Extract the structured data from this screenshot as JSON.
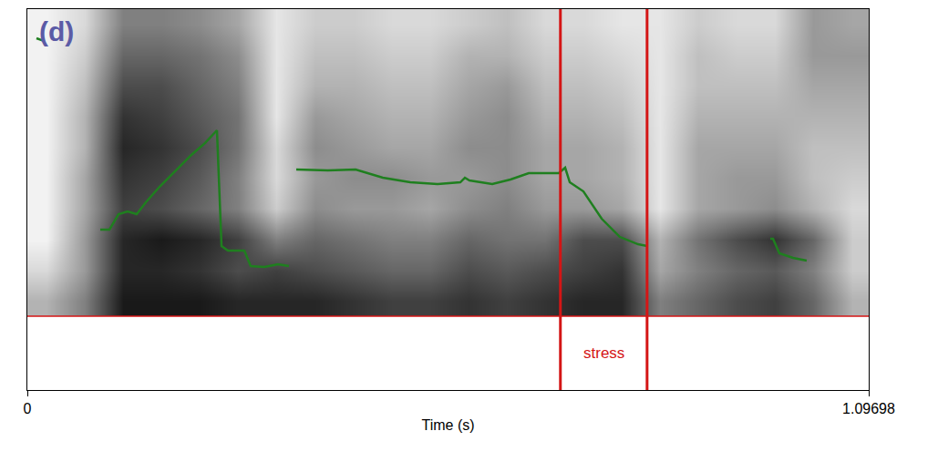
{
  "chart_data": {
    "type": "spectrogram",
    "panel_label": "(d)",
    "x_label": "Time (s)",
    "xlim": [
      0,
      1.09698
    ],
    "xticks": [
      0,
      1.09698
    ],
    "ylim": [
      -1200,
      5000
    ],
    "tick_labels": "x",
    "grid": false,
    "tier_boundary": 0,
    "heatmap": {
      "x": [
        0.025,
        0.075,
        0.125,
        0.175,
        0.225,
        0.275,
        0.325,
        0.375,
        0.425,
        0.475,
        0.525,
        0.575,
        0.625,
        0.675,
        0.725,
        0.775,
        0.825,
        0.875,
        0.925,
        0.975,
        1.025,
        1.075
      ],
      "y": [
        250,
        750,
        1250,
        1750,
        2250,
        2750,
        3250,
        3750,
        4250,
        4750
      ],
      "cell_range": [
        0,
        1
      ],
      "cells": [
        [
          0.3,
          0.5,
          0.9,
          0.9,
          0.9,
          0.85,
          0.85,
          0.85,
          0.8,
          0.75,
          0.75,
          0.8,
          0.75,
          0.8,
          0.85,
          0.85,
          0.5,
          0.6,
          0.7,
          0.75,
          0.6,
          0.3
        ],
        [
          0.15,
          0.4,
          0.85,
          0.85,
          0.8,
          0.7,
          0.75,
          0.7,
          0.65,
          0.6,
          0.6,
          0.7,
          0.65,
          0.7,
          0.75,
          0.8,
          0.35,
          0.5,
          0.6,
          0.65,
          0.5,
          0.2
        ],
        [
          0.05,
          0.4,
          0.85,
          0.9,
          0.85,
          0.75,
          0.5,
          0.6,
          0.55,
          0.5,
          0.5,
          0.6,
          0.55,
          0.55,
          0.7,
          0.7,
          0.3,
          0.55,
          0.7,
          0.8,
          0.6,
          0.2
        ],
        [
          0.05,
          0.35,
          0.75,
          0.7,
          0.6,
          0.5,
          0.2,
          0.45,
          0.4,
          0.4,
          0.35,
          0.45,
          0.5,
          0.4,
          0.4,
          0.35,
          0.1,
          0.35,
          0.4,
          0.45,
          0.3,
          0.15
        ],
        [
          0.05,
          0.35,
          0.8,
          0.75,
          0.65,
          0.5,
          0.15,
          0.4,
          0.45,
          0.45,
          0.4,
          0.4,
          0.45,
          0.35,
          0.35,
          0.3,
          0.1,
          0.35,
          0.4,
          0.4,
          0.25,
          0.2
        ],
        [
          0.05,
          0.3,
          0.85,
          0.8,
          0.7,
          0.55,
          0.15,
          0.45,
          0.4,
          0.35,
          0.35,
          0.45,
          0.45,
          0.35,
          0.35,
          0.3,
          0.1,
          0.35,
          0.35,
          0.35,
          0.25,
          0.25
        ],
        [
          0.05,
          0.3,
          0.8,
          0.75,
          0.65,
          0.55,
          0.1,
          0.4,
          0.35,
          0.3,
          0.3,
          0.4,
          0.45,
          0.3,
          0.3,
          0.25,
          0.1,
          0.3,
          0.3,
          0.3,
          0.3,
          0.3
        ],
        [
          0.05,
          0.25,
          0.7,
          0.7,
          0.6,
          0.5,
          0.1,
          0.3,
          0.3,
          0.25,
          0.25,
          0.35,
          0.4,
          0.25,
          0.25,
          0.2,
          0.1,
          0.25,
          0.25,
          0.25,
          0.35,
          0.35
        ],
        [
          0.05,
          0.2,
          0.6,
          0.6,
          0.55,
          0.45,
          0.1,
          0.25,
          0.25,
          0.2,
          0.2,
          0.3,
          0.3,
          0.2,
          0.2,
          0.15,
          0.1,
          0.25,
          0.2,
          0.2,
          0.4,
          0.4
        ],
        [
          0.05,
          0.15,
          0.5,
          0.5,
          0.45,
          0.35,
          0.1,
          0.2,
          0.2,
          0.15,
          0.15,
          0.2,
          0.25,
          0.15,
          0.15,
          0.1,
          0.1,
          0.2,
          0.15,
          0.15,
          0.4,
          0.35
        ]
      ]
    },
    "pitch": {
      "color": "#1f7f1f",
      "x": [
        0.0119,
        0.0214,
        0.05,
        0.0951,
        0.107,
        0.1189,
        0.1307,
        0.1426,
        0.1545,
        0.1723,
        0.1902,
        0.2139,
        0.2318,
        0.2472,
        0.2532,
        0.2615,
        0.2829,
        0.2912,
        0.309,
        0.3268,
        0.3411,
        0.345,
        0.3506,
        0.3922,
        0.4279,
        0.4635,
        0.4992,
        0.5348,
        0.5645,
        0.5705,
        0.5764,
        0.6061,
        0.6299,
        0.6537,
        0.6774,
        0.6929,
        0.7012,
        0.7072,
        0.725,
        0.7488,
        0.7725,
        0.7963,
        0.8082,
        0.9,
        0.9686,
        0.9722,
        0.9805,
        0.9983,
        1.0161
      ],
      "values": [
        4526,
        4482,
        null,
        1410,
        1410,
        1662,
        1707,
        1662,
        1855,
        2107,
        2330,
        2627,
        2820,
        3027,
        1143,
        1068,
        1068,
        816,
        801,
        846,
        816,
        null,
        2389,
        2374,
        2389,
        2256,
        2181,
        2152,
        2181,
        2256,
        2211,
        2152,
        2226,
        2330,
        2330,
        2330,
        2419,
        2181,
        2033,
        1588,
        1291,
        1172,
        1143,
        null,
        1261,
        1261,
        1024,
        950,
        905
      ]
    },
    "intervals": [
      {
        "label": "stress",
        "start": 0.695,
        "end": 0.808,
        "color": "#d41515"
      }
    ]
  }
}
